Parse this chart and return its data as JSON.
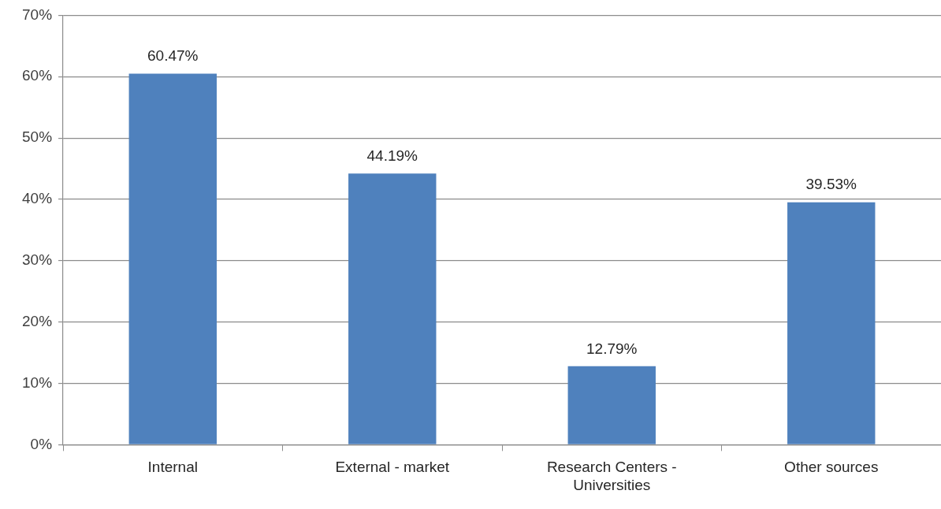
{
  "chart_data": {
    "type": "bar",
    "categories": [
      "Internal",
      "External - market",
      "Research Centers - Universities",
      "Other sources"
    ],
    "values": [
      60.47,
      44.19,
      12.79,
      39.53
    ],
    "value_labels": [
      "60.47%",
      "44.19%",
      "12.79%",
      "39.53%"
    ],
    "color": "#4f81bd",
    "ylim": [
      0,
      70
    ],
    "yticks": [
      {
        "value": 0,
        "label": "0%"
      },
      {
        "value": 10,
        "label": "10%"
      },
      {
        "value": 20,
        "label": "20%"
      },
      {
        "value": 30,
        "label": "30%"
      },
      {
        "value": 40,
        "label": "40%"
      },
      {
        "value": 50,
        "label": "50%"
      },
      {
        "value": 60,
        "label": "60%"
      },
      {
        "value": 70,
        "label": "70%"
      }
    ],
    "grid": "y",
    "legend": false
  }
}
